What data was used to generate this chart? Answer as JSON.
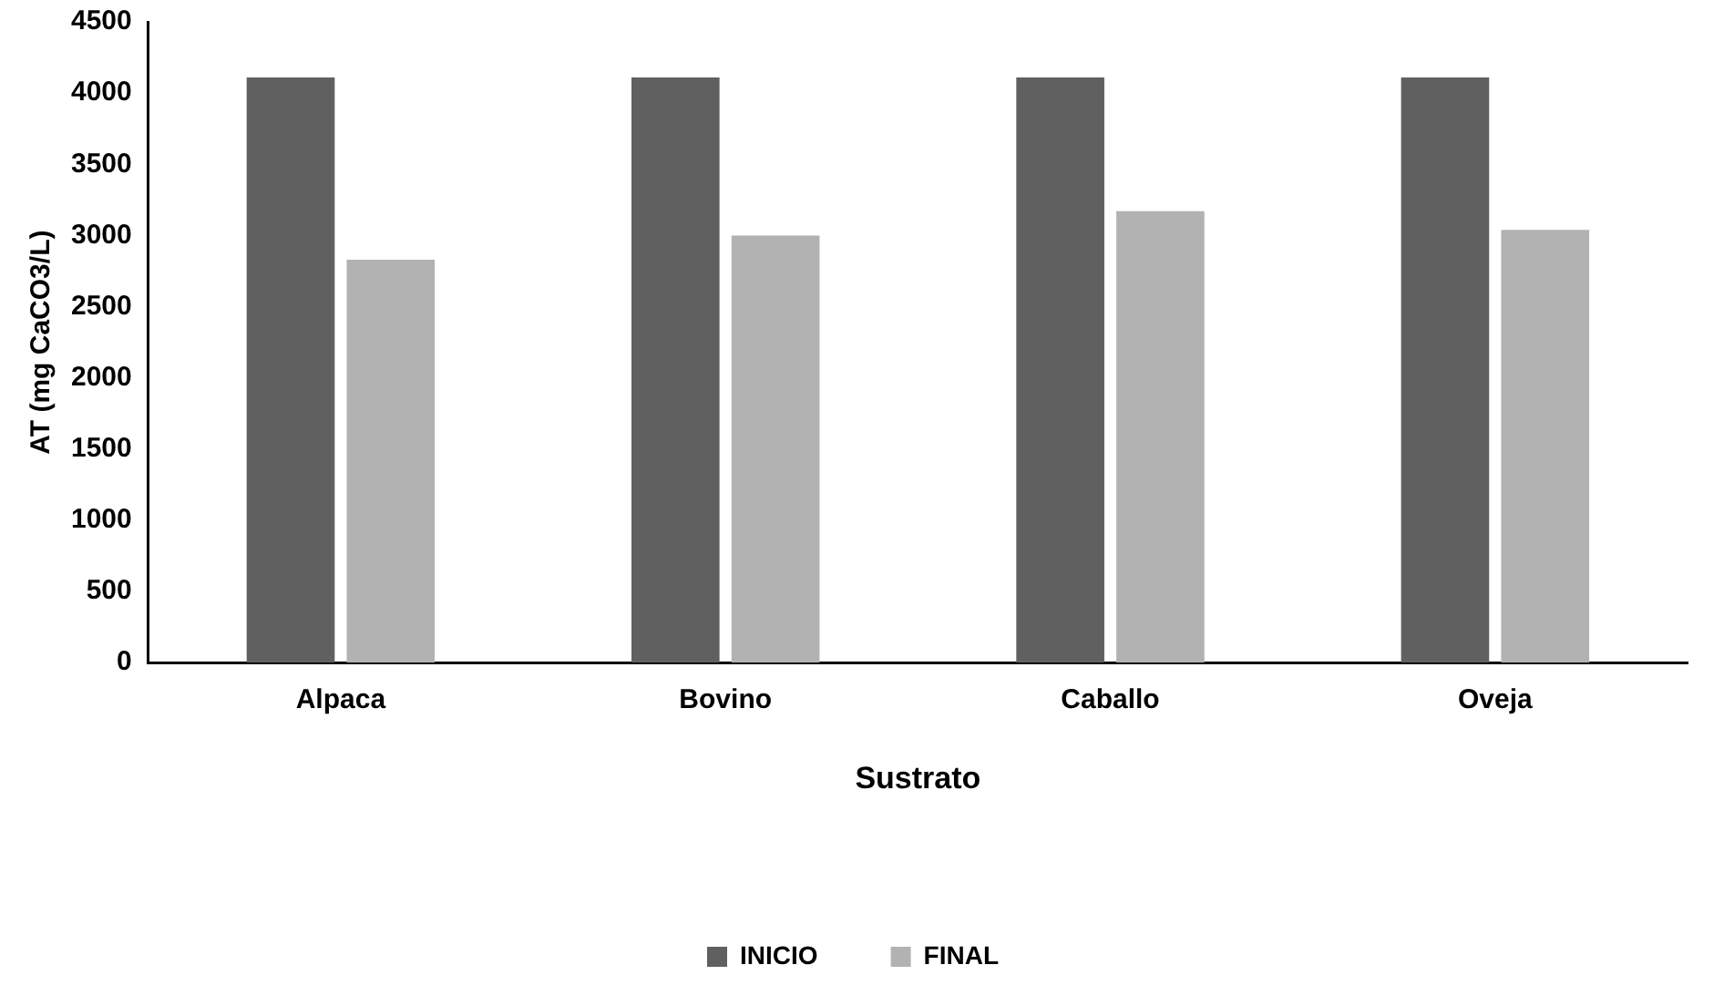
{
  "chart_data": {
    "type": "bar",
    "xlabel": "Sustrato",
    "ylabel": "AT (mg CaCO3/L)",
    "categories": [
      "Alpaca",
      "Bovino",
      "Caballo",
      "Oveja"
    ],
    "series": [
      {
        "name": "INICIO",
        "color": "#606060",
        "values": [
          4110,
          4110,
          4110,
          4110
        ]
      },
      {
        "name": "FINAL",
        "color": "#b2b2b2",
        "values": [
          2830,
          3000,
          3170,
          3040
        ]
      }
    ],
    "ylim": [
      0,
      4500
    ],
    "yticks": [
      0,
      500,
      1000,
      1500,
      2000,
      2500,
      3000,
      3500,
      4000,
      4500
    ],
    "grid": false,
    "legend": "bottom"
  }
}
